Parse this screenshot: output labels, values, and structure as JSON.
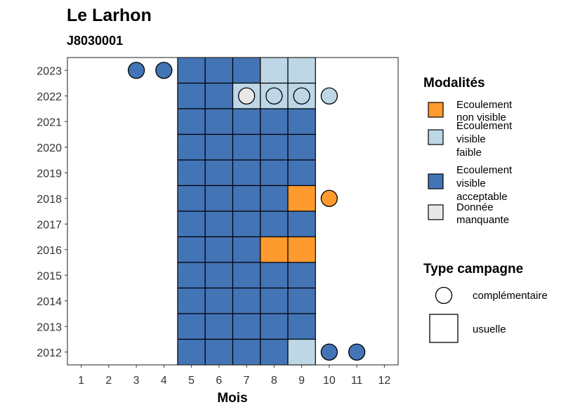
{
  "chart_data": {
    "type": "heatmap",
    "title": "Le Larhon",
    "subtitle": "J8030001",
    "xlabel": "Mois",
    "ylabel": "",
    "x_ticks": [
      "1",
      "2",
      "3",
      "4",
      "5",
      "6",
      "7",
      "8",
      "9",
      "10",
      "11",
      "12"
    ],
    "y_ticks": [
      "2012",
      "2013",
      "2014",
      "2015",
      "2016",
      "2017",
      "2018",
      "2019",
      "2020",
      "2021",
      "2022",
      "2023"
    ],
    "xlim": [
      0.5,
      12.5
    ],
    "ylim": [
      2011.5,
      2023.5
    ],
    "grid": false,
    "legend_position": "right",
    "colors": {
      "non_visible": "#FE9A2E",
      "faible": "#BDD7E7",
      "acceptable": "#4374B6",
      "manquante": "#E8E8E8"
    },
    "legend_modalites": {
      "title": "Modalités",
      "items": [
        {
          "key": "non_visible",
          "lines": [
            "Ecoulement",
            "non visible"
          ]
        },
        {
          "key": "faible",
          "lines": [
            "Ecoulement",
            "visible",
            "faible"
          ]
        },
        {
          "key": "acceptable",
          "lines": [
            "Ecoulement",
            "visible",
            "acceptable"
          ]
        },
        {
          "key": "manquante",
          "lines": [
            "Donnée",
            "manquante"
          ]
        }
      ]
    },
    "legend_campagne": {
      "title": "Type campagne",
      "items": [
        {
          "shape": "circle",
          "label": "complémentaire"
        },
        {
          "shape": "square",
          "label": "usuelle"
        }
      ]
    },
    "usuelle": [
      {
        "year": 2023,
        "values": {
          "5": "acceptable",
          "6": "acceptable",
          "7": "acceptable",
          "8": "faible",
          "9": "faible"
        }
      },
      {
        "year": 2022,
        "values": {
          "5": "acceptable",
          "6": "acceptable",
          "7": "faible",
          "8": "faible",
          "9": "faible"
        }
      },
      {
        "year": 2021,
        "values": {
          "5": "acceptable",
          "6": "acceptable",
          "7": "acceptable",
          "8": "acceptable",
          "9": "acceptable"
        }
      },
      {
        "year": 2020,
        "values": {
          "5": "acceptable",
          "6": "acceptable",
          "7": "acceptable",
          "8": "acceptable",
          "9": "acceptable"
        }
      },
      {
        "year": 2019,
        "values": {
          "5": "acceptable",
          "6": "acceptable",
          "7": "acceptable",
          "8": "acceptable",
          "9": "acceptable"
        }
      },
      {
        "year": 2018,
        "values": {
          "5": "acceptable",
          "6": "acceptable",
          "7": "acceptable",
          "8": "acceptable",
          "9": "non_visible"
        }
      },
      {
        "year": 2017,
        "values": {
          "5": "acceptable",
          "6": "acceptable",
          "7": "acceptable",
          "8": "acceptable",
          "9": "acceptable"
        }
      },
      {
        "year": 2016,
        "values": {
          "5": "acceptable",
          "6": "acceptable",
          "7": "acceptable",
          "8": "non_visible",
          "9": "non_visible"
        }
      },
      {
        "year": 2015,
        "values": {
          "5": "acceptable",
          "6": "acceptable",
          "7": "acceptable",
          "8": "acceptable",
          "9": "acceptable"
        }
      },
      {
        "year": 2014,
        "values": {
          "5": "acceptable",
          "6": "acceptable",
          "7": "acceptable",
          "8": "acceptable",
          "9": "acceptable"
        }
      },
      {
        "year": 2013,
        "values": {
          "5": "acceptable",
          "6": "acceptable",
          "7": "acceptable",
          "8": "acceptable",
          "9": "acceptable"
        }
      },
      {
        "year": 2012,
        "values": {
          "5": "acceptable",
          "6": "acceptable",
          "7": "acceptable",
          "8": "acceptable",
          "9": "faible"
        }
      }
    ],
    "complementaire": [
      {
        "year": 2023,
        "month": 3,
        "value": "acceptable"
      },
      {
        "year": 2023,
        "month": 4,
        "value": "acceptable"
      },
      {
        "year": 2022,
        "month": 7,
        "value": "manquante"
      },
      {
        "year": 2022,
        "month": 8,
        "value": "faible"
      },
      {
        "year": 2022,
        "month": 9,
        "value": "faible"
      },
      {
        "year": 2022,
        "month": 10,
        "value": "faible"
      },
      {
        "year": 2018,
        "month": 10,
        "value": "non_visible"
      },
      {
        "year": 2012,
        "month": 10,
        "value": "acceptable"
      },
      {
        "year": 2012,
        "month": 11,
        "value": "acceptable"
      }
    ]
  }
}
